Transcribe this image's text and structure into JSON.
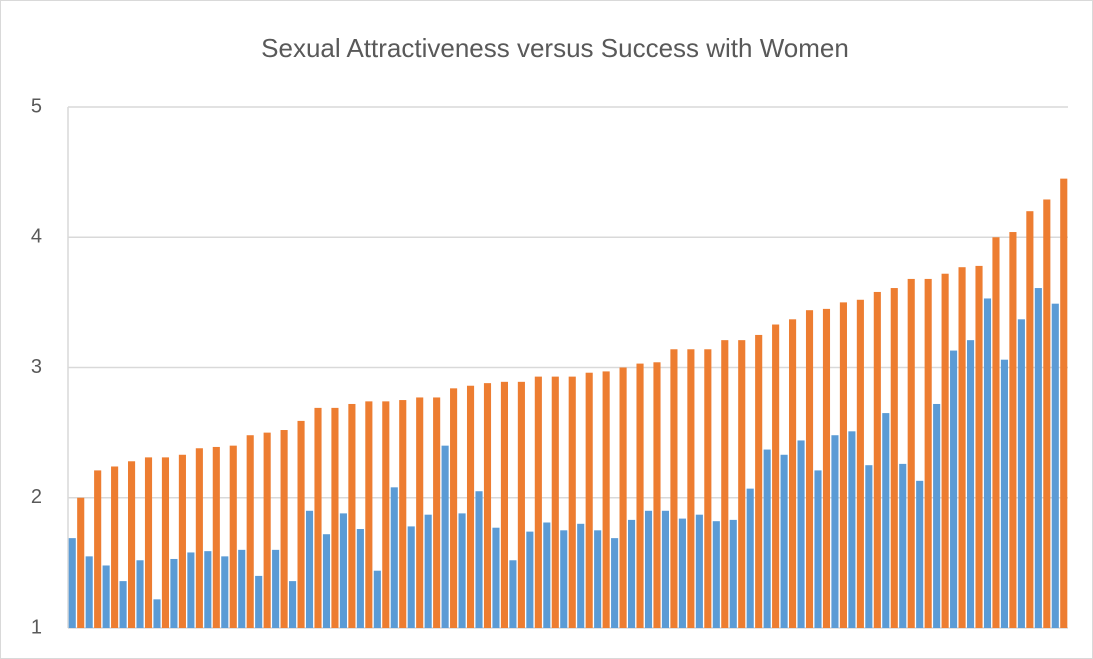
{
  "chart_data": {
    "type": "bar",
    "title": "Sexual Attractiveness versus Success with Women",
    "categories": [
      null,
      null,
      null,
      null,
      null,
      null,
      null,
      null,
      null,
      null,
      null,
      null,
      null,
      null,
      null,
      null,
      null,
      null,
      null,
      null,
      null,
      null,
      null,
      null,
      null,
      null,
      null,
      null,
      null,
      null,
      null,
      null,
      null,
      null,
      null,
      null,
      null,
      null,
      null,
      null,
      null,
      null,
      null,
      null,
      null,
      null,
      null,
      null,
      null,
      null,
      null,
      null,
      null,
      null,
      null,
      null,
      null,
      null,
      null
    ],
    "series": [
      {
        "color": "#5b9bd5",
        "values": [
          1.69,
          1.55,
          1.48,
          1.36,
          1.52,
          1.22,
          1.53,
          1.58,
          1.59,
          1.55,
          1.6,
          1.4,
          1.6,
          1.36,
          1.9,
          1.72,
          1.88,
          1.76,
          1.44,
          2.08,
          1.78,
          1.87,
          2.4,
          1.88,
          2.05,
          1.77,
          1.52,
          1.74,
          1.81,
          1.75,
          1.8,
          1.75,
          1.69,
          1.83,
          1.9,
          1.9,
          1.84,
          1.87,
          1.82,
          1.83,
          2.07,
          2.37,
          2.33,
          2.44,
          2.21,
          2.48,
          2.51,
          2.25,
          2.65,
          2.26,
          2.13,
          2.72,
          3.13,
          3.21,
          3.53,
          3.06,
          3.37,
          3.61,
          3.49
        ]
      },
      {
        "color": "#ed7d31",
        "values": [
          2.0,
          2.21,
          2.24,
          2.28,
          2.31,
          2.31,
          2.33,
          2.38,
          2.39,
          2.4,
          2.48,
          2.5,
          2.52,
          2.59,
          2.69,
          2.69,
          2.72,
          2.74,
          2.74,
          2.75,
          2.77,
          2.77,
          2.84,
          2.86,
          2.88,
          2.89,
          2.89,
          2.93,
          2.93,
          2.93,
          2.96,
          2.97,
          3.0,
          3.03,
          3.04,
          3.14,
          3.14,
          3.14,
          3.21,
          3.21,
          3.25,
          3.33,
          3.37,
          3.44,
          3.45,
          3.5,
          3.52,
          3.58,
          3.61,
          3.68,
          3.68,
          3.72,
          3.77,
          3.78,
          4.0,
          4.04,
          4.2,
          4.29,
          4.45
        ]
      }
    ],
    "ylim": [
      1,
      5
    ],
    "yticks": [
      1,
      2,
      3,
      4,
      5
    ],
    "grid": true
  }
}
